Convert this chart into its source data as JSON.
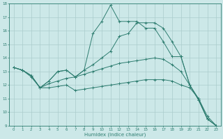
{
  "xlabel": "Humidex (Indice chaleur)",
  "bg_color": "#cce8e8",
  "grid_color": "#aacccc",
  "line_color": "#2e7d70",
  "xlim": [
    -0.5,
    23.5
  ],
  "ylim": [
    9,
    18
  ],
  "yticks": [
    9,
    10,
    11,
    12,
    13,
    14,
    15,
    16,
    17,
    18
  ],
  "xticks": [
    0,
    1,
    2,
    3,
    4,
    5,
    6,
    7,
    8,
    9,
    10,
    11,
    12,
    13,
    14,
    15,
    16,
    17,
    18,
    19,
    20,
    21,
    22,
    23
  ],
  "series": [
    {
      "x": [
        0,
        1,
        2,
        3,
        4,
        5,
        6,
        7,
        8,
        9,
        10,
        11,
        12,
        13,
        14,
        15,
        16,
        17,
        18,
        19,
        20,
        21,
        22,
        23
      ],
      "y": [
        13.3,
        13.1,
        12.7,
        11.8,
        12.3,
        13.0,
        13.1,
        12.6,
        13.1,
        15.8,
        16.7,
        17.9,
        16.7,
        16.7,
        16.7,
        16.2,
        16.2,
        15.2,
        14.1,
        14.1,
        12.0,
        10.9,
        9.5,
        9.0
      ],
      "marker": true
    },
    {
      "x": [
        0,
        1,
        2,
        3,
        4,
        5,
        6,
        7,
        8,
        9,
        10,
        11,
        12,
        13,
        14,
        15,
        16,
        17,
        18,
        19,
        20,
        21,
        22,
        23
      ],
      "y": [
        13.3,
        13.1,
        12.7,
        11.8,
        12.3,
        13.0,
        13.1,
        12.6,
        13.1,
        13.5,
        14.0,
        14.5,
        15.6,
        15.8,
        16.6,
        16.6,
        16.6,
        16.2,
        15.2,
        14.1,
        12.0,
        10.9,
        9.5,
        9.0
      ],
      "marker": true
    },
    {
      "x": [
        0,
        1,
        2,
        3,
        4,
        5,
        6,
        7,
        8,
        9,
        10,
        11,
        12,
        13,
        14,
        15,
        16,
        17,
        18,
        19,
        20,
        21,
        22,
        23
      ],
      "y": [
        13.3,
        13.1,
        12.7,
        11.8,
        12.1,
        12.3,
        12.5,
        12.6,
        12.8,
        13.0,
        13.2,
        13.4,
        13.6,
        13.7,
        13.8,
        13.9,
        14.0,
        13.9,
        13.5,
        13.0,
        12.0,
        11.0,
        9.7,
        9.0
      ],
      "marker": true
    },
    {
      "x": [
        0,
        1,
        2,
        3,
        4,
        5,
        6,
        7,
        8,
        9,
        10,
        11,
        12,
        13,
        14,
        15,
        16,
        17,
        18,
        19,
        20,
        21,
        22,
        23
      ],
      "y": [
        13.3,
        13.1,
        12.6,
        11.8,
        11.8,
        11.9,
        12.0,
        11.6,
        11.7,
        11.8,
        11.9,
        12.0,
        12.1,
        12.2,
        12.3,
        12.4,
        12.4,
        12.4,
        12.3,
        12.0,
        11.8,
        11.0,
        9.5,
        9.0
      ],
      "marker": true
    }
  ]
}
